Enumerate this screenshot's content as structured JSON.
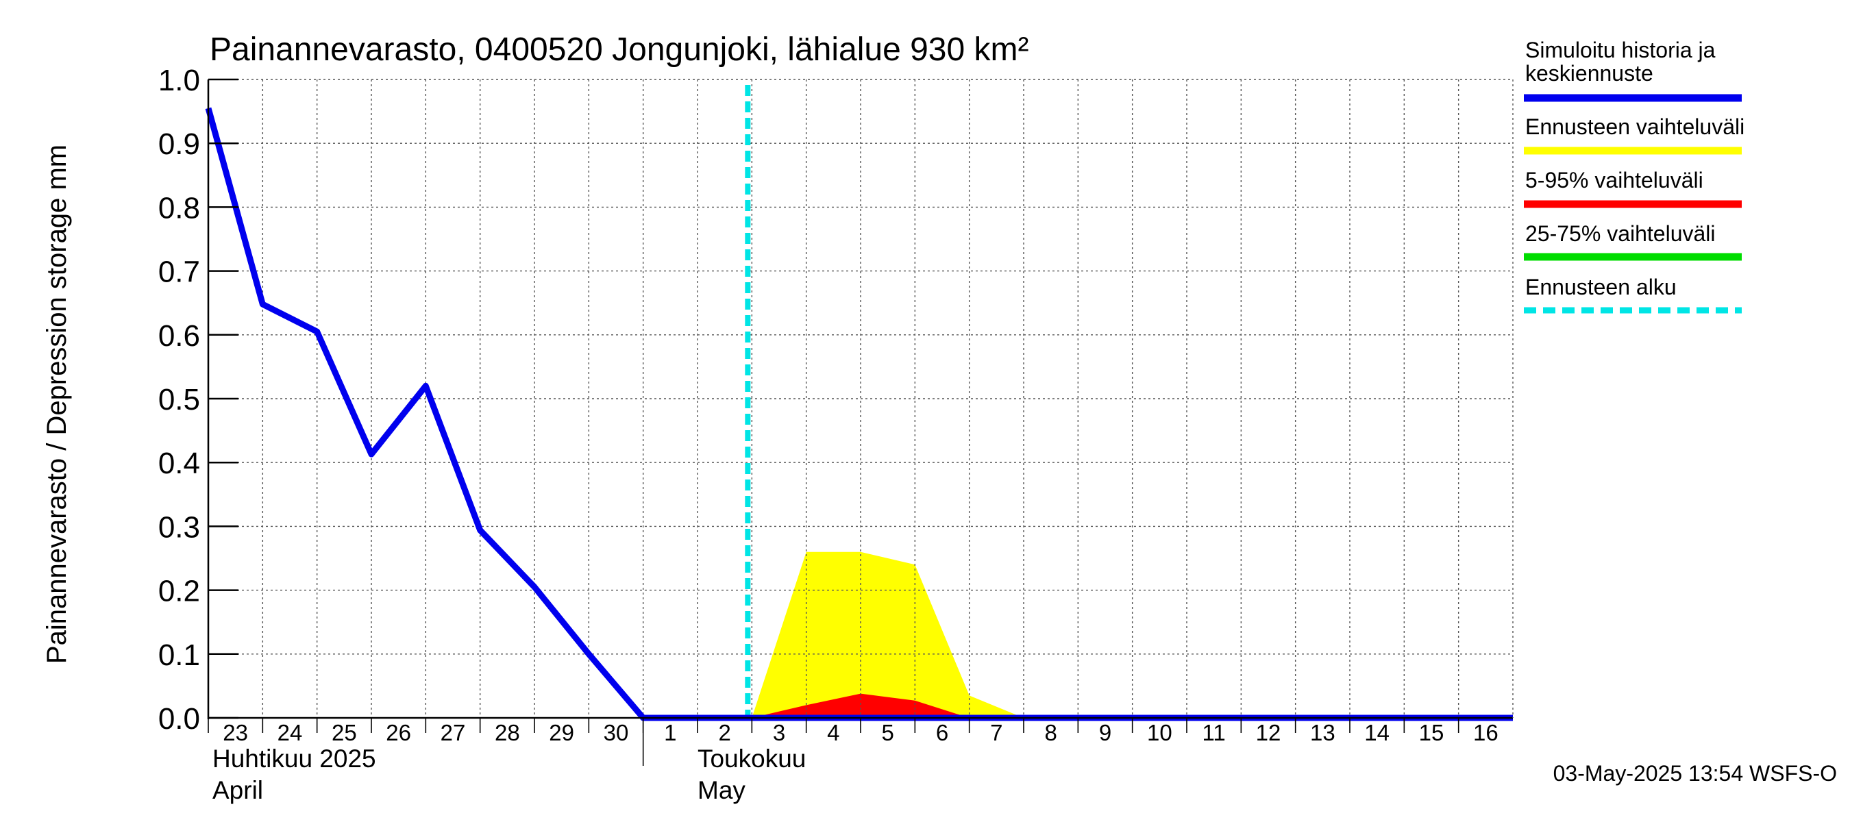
{
  "chart_data": {
    "type": "area",
    "title": "Painannevarasto, 0400520 Jongunjoki, lähialue 930 km²",
    "ylabel": "Painannevarasto / Depression storage    mm",
    "ylim": [
      0.0,
      1.0
    ],
    "yticks": [
      "0.0",
      "0.1",
      "0.2",
      "0.3",
      "0.4",
      "0.5",
      "0.6",
      "0.7",
      "0.8",
      "0.9",
      "1.0"
    ],
    "xlim": [
      "2025-04-23",
      "2025-05-17"
    ],
    "x_tick_labels": [
      "23",
      "24",
      "25",
      "26",
      "27",
      "28",
      "29",
      "30",
      "1",
      "2",
      "3",
      "4",
      "5",
      "6",
      "7",
      "8",
      "9",
      "10",
      "11",
      "12",
      "13",
      "14",
      "15",
      "16"
    ],
    "month_labels": {
      "april_fi": "Huhtikuu  2025",
      "april_en": "April",
      "may_fi": "Toukokuu",
      "may_en": "May"
    },
    "grid": true,
    "legend_position": "right",
    "forecast_start": "2025-05-03",
    "series": [
      {
        "name": "Ennusteen vaihteluväli",
        "color": "#ffff00",
        "kind": "band",
        "x": [
          "2025-05-03",
          "2025-05-04",
          "2025-05-05",
          "2025-05-06",
          "2025-05-07",
          "2025-05-08"
        ],
        "lower": [
          0,
          0,
          0,
          0,
          0,
          0
        ],
        "upper": [
          0,
          0.26,
          0.26,
          0.24,
          0.035,
          0
        ]
      },
      {
        "name": "5-95% vaihteluväli",
        "color": "#ff0000",
        "kind": "band",
        "x": [
          "2025-05-03",
          "2025-05-04",
          "2025-05-05",
          "2025-05-06",
          "2025-05-07"
        ],
        "lower": [
          0,
          0,
          0,
          0,
          0
        ],
        "upper": [
          0,
          0.02,
          0.038,
          0.027,
          0
        ]
      },
      {
        "name": "25-75% vaihteluväli",
        "color": "#00dd00",
        "kind": "band",
        "x": [],
        "lower": [],
        "upper": []
      },
      {
        "name": "Simuloitu historia ja keskiennuste",
        "color": "#0000ee",
        "kind": "line",
        "x": [
          "2025-04-23",
          "2025-04-24",
          "2025-04-25",
          "2025-04-26",
          "2025-04-27",
          "2025-04-28",
          "2025-04-29",
          "2025-04-30",
          "2025-05-01",
          "2025-05-17"
        ],
        "y": [
          0.955,
          0.648,
          0.605,
          0.413,
          0.52,
          0.294,
          0.205,
          0.1,
          0.0,
          0.0
        ]
      }
    ]
  },
  "legend": {
    "items": [
      {
        "line1": "Simuloitu historia ja",
        "line2": "keskiennuste",
        "color": "#0000ee",
        "style": "solid"
      },
      {
        "line1": "Ennusteen vaihteluväli",
        "line2": "",
        "color": "#ffff00",
        "style": "solid"
      },
      {
        "line1": "5-95% vaihteluväli",
        "line2": "",
        "color": "#ff0000",
        "style": "solid"
      },
      {
        "line1": "25-75% vaihteluväli",
        "line2": "",
        "color": "#00dd00",
        "style": "solid"
      },
      {
        "line1": "Ennusteen alku",
        "line2": "",
        "color": "#00e5e5",
        "style": "dashed"
      }
    ]
  },
  "footer": "03-May-2025 13:54 WSFS-O",
  "colors": {
    "forecast_line": "#00e5e5",
    "grid": "#555555"
  }
}
